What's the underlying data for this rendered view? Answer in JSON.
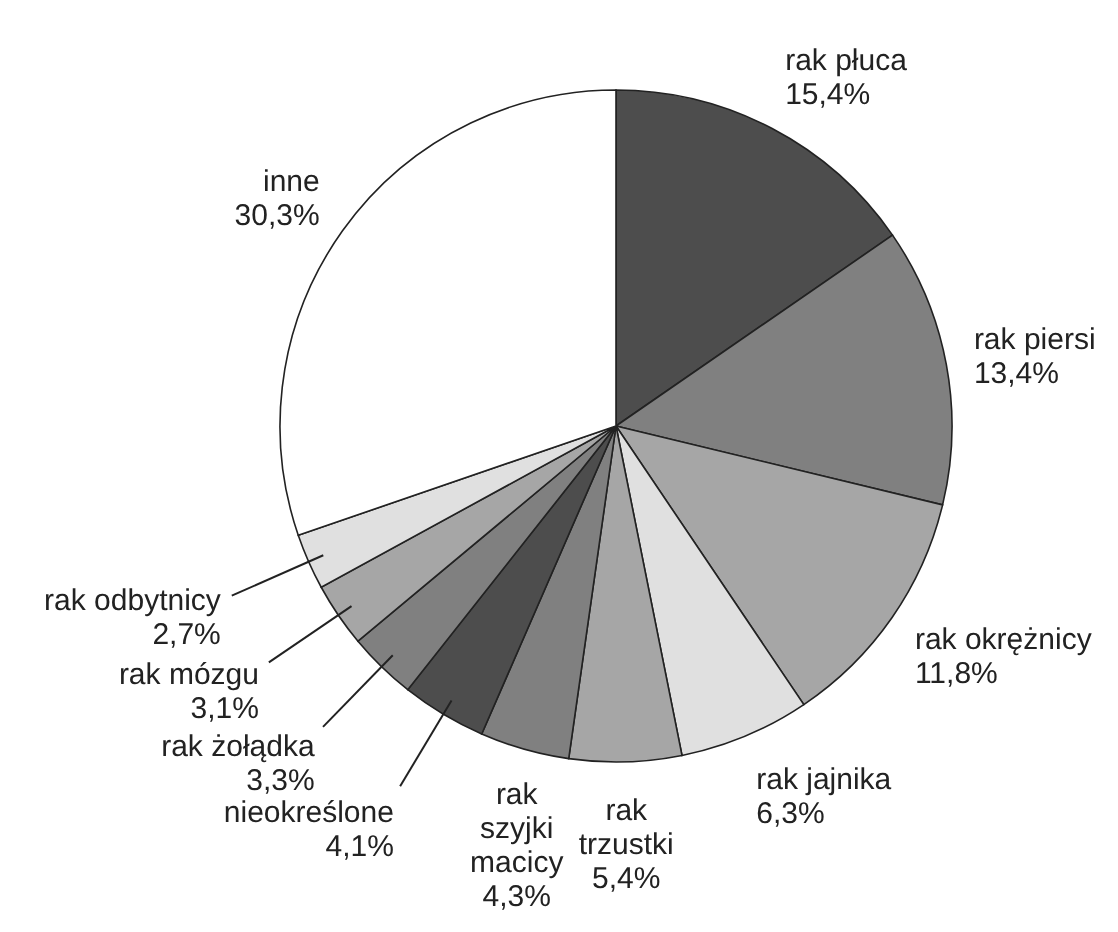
{
  "chart_data": {
    "type": "pie",
    "categories": [
      "rak płuca",
      "rak piersi",
      "rak okrężnicy",
      "rak jajnika",
      "rak\ntrzustki",
      "rak\nszyjki\nmacicy",
      "nieokreślone",
      "rak żołądka",
      "rak mózgu",
      "rak odbytnicy",
      "inne"
    ],
    "values": [
      15.4,
      13.4,
      11.8,
      6.3,
      5.4,
      4.3,
      4.1,
      3.3,
      3.1,
      2.7,
      30.3
    ],
    "value_labels": [
      "15,4%",
      "13,4%",
      "11,8%",
      "6,3%",
      "5,4%",
      "4,3%",
      "4,1%",
      "3,3%",
      "3,1%",
      "2,7%",
      "30,3%"
    ],
    "colors": [
      "#4d4d4d",
      "#808080",
      "#a6a6a6",
      "#e0e0e0",
      "#a6a6a6",
      "#808080",
      "#4d4d4d",
      "#808080",
      "#a6a6a6",
      "#e0e0e0",
      "#ffffff"
    ]
  }
}
